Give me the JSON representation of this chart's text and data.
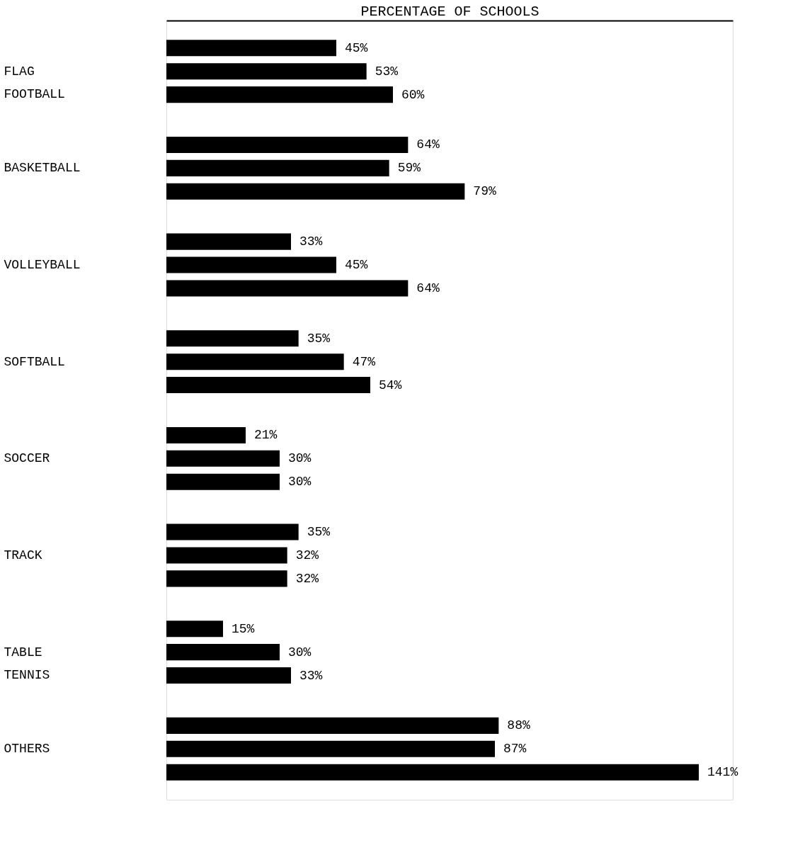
{
  "chart_data": {
    "type": "bar",
    "orientation": "horizontal",
    "xlabel": "PERCENTAGE OF SCHOOLS",
    "categories": [
      "FLAG FOOTBALL",
      "BASKETBALL",
      "VOLLEYBALL",
      "SOFTBALL",
      "SOCCER",
      "TRACK",
      "TABLE TENNIS",
      "OTHERS"
    ],
    "series": [
      {
        "color": "#000000",
        "values": [
          45,
          64,
          33,
          35,
          21,
          35,
          15,
          88
        ],
        "value_labels": [
          "45%",
          "64%",
          "33%",
          "35%",
          "21%",
          "35%",
          "15%",
          "88%"
        ]
      },
      {
        "color": "#000000",
        "values": [
          53,
          59,
          45,
          47,
          30,
          32,
          30,
          87
        ],
        "value_labels": [
          "53%",
          "59%",
          "45%",
          "47%",
          "30%",
          "32%",
          "30%",
          "87%"
        ]
      },
      {
        "color": "#000000",
        "values": [
          60,
          79,
          64,
          54,
          30,
          32,
          33,
          141
        ],
        "value_labels": [
          "60%",
          "79%",
          "64%",
          "54%",
          "30%",
          "32%",
          "33%",
          "141%"
        ]
      }
    ],
    "xlim": [
      0,
      150
    ],
    "grid": false,
    "legend": false
  }
}
